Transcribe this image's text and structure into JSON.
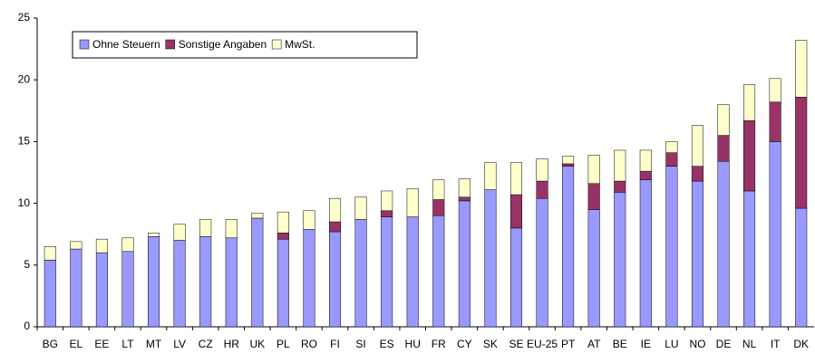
{
  "chart_data": {
    "type": "stacked_bar",
    "categories": [
      "BG",
      "EL",
      "EE",
      "LT",
      "MT",
      "LV",
      "CZ",
      "HR",
      "UK",
      "PL",
      "RO",
      "FI",
      "SI",
      "ES",
      "HU",
      "FR",
      "CY",
      "SK",
      "SE",
      "EU-25",
      "PT",
      "AT",
      "BE",
      "IE",
      "LU",
      "NO",
      "DE",
      "NL",
      "IT",
      "DK"
    ],
    "series": [
      {
        "name": "Ohne Steuern",
        "color": "#9999ff",
        "values": [
          5.4,
          6.3,
          6.0,
          6.1,
          7.3,
          7.0,
          7.3,
          7.2,
          8.8,
          7.1,
          7.9,
          7.7,
          8.7,
          8.9,
          8.9,
          9.0,
          10.2,
          11.1,
          8.0,
          10.4,
          13.0,
          9.5,
          10.9,
          11.9,
          13.0,
          11.8,
          13.4,
          11.0,
          15.0,
          9.6
        ]
      },
      {
        "name": "Sonstige Angaben",
        "color": "#993366",
        "values": [
          0,
          0,
          0,
          0,
          0,
          0,
          0,
          0,
          0,
          0.5,
          0,
          0.8,
          0,
          0.5,
          0,
          1.3,
          0.3,
          0,
          2.7,
          1.4,
          0.2,
          2.1,
          0.9,
          0.7,
          1.1,
          1.2,
          2.1,
          5.7,
          3.2,
          9.0
        ]
      },
      {
        "name": "MwSt.",
        "color": "#ffffcc",
        "values": [
          1.1,
          0.6,
          1.1,
          1.1,
          0.3,
          1.3,
          1.4,
          1.5,
          0.4,
          1.7,
          1.5,
          1.9,
          1.8,
          1.6,
          2.3,
          1.6,
          1.5,
          2.2,
          2.6,
          1.8,
          0.6,
          2.3,
          2.5,
          1.7,
          0.9,
          3.3,
          2.5,
          2.9,
          1.9,
          4.6
        ]
      }
    ],
    "ylim": [
      0,
      25
    ],
    "yticks": [
      0,
      5,
      10,
      15,
      20,
      25
    ],
    "legend": "top-left"
  }
}
